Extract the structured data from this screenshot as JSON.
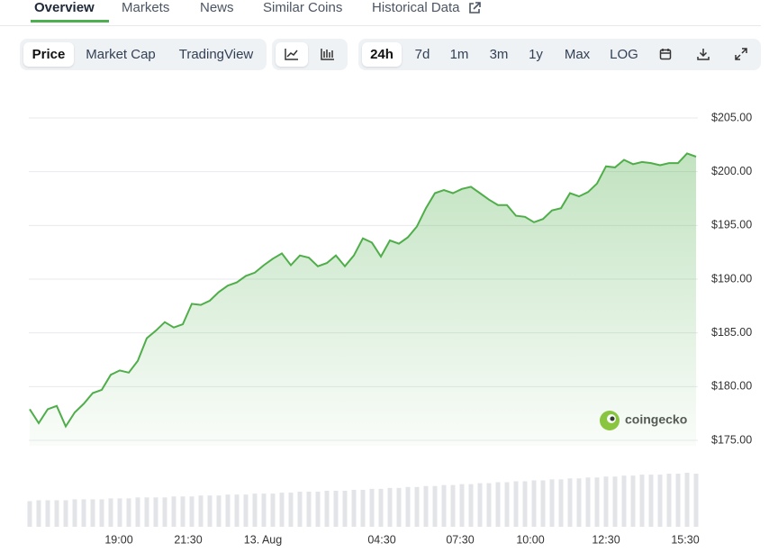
{
  "tabs": [
    "Overview",
    "Markets",
    "News",
    "Similar Coins",
    "Historical Data"
  ],
  "toolbar": {
    "chart_types": [
      "Price",
      "Market Cap",
      "TradingView"
    ],
    "ranges": [
      "24h",
      "7d",
      "1m",
      "3m",
      "1y",
      "Max",
      "LOG"
    ]
  },
  "watermark": "coingecko",
  "chart": {
    "type": "line",
    "color": "#4fae4a",
    "values": [
      177.9,
      176.6,
      177.9,
      178.2,
      176.3,
      177.6,
      178.4,
      179.4,
      179.7,
      181.1,
      181.5,
      181.3,
      182.4,
      184.5,
      185.2,
      186.0,
      185.5,
      185.8,
      187.7,
      187.6,
      188.0,
      188.8,
      189.4,
      189.7,
      190.3,
      190.6,
      191.3,
      191.9,
      192.4,
      191.3,
      192.2,
      192.0,
      191.2,
      191.5,
      192.2,
      191.2,
      192.2,
      193.8,
      193.4,
      192.1,
      193.6,
      193.3,
      193.9,
      194.9,
      196.6,
      198.0,
      198.3,
      198.0,
      198.4,
      198.6,
      198.0,
      197.4,
      196.9,
      196.9,
      195.9,
      195.8,
      195.3,
      195.6,
      196.4,
      196.6,
      198.0,
      197.7,
      198.1,
      198.9,
      200.5,
      200.4,
      201.1,
      200.7,
      200.9,
      200.8,
      200.6,
      200.8,
      200.8,
      201.7,
      201.4
    ],
    "volume": [
      27,
      28,
      28,
      28,
      28,
      29,
      29,
      29,
      29,
      30,
      30,
      30,
      31,
      31,
      31,
      31,
      32,
      32,
      32,
      33,
      33,
      33,
      34,
      34,
      34,
      35,
      35,
      35,
      36,
      36,
      37,
      37,
      37,
      38,
      38,
      38,
      39,
      39,
      40,
      40,
      41,
      41,
      42,
      42,
      43,
      43,
      44,
      44,
      45,
      45,
      46,
      46,
      47,
      47,
      48,
      48,
      49,
      49,
      50,
      50,
      51,
      51,
      52,
      52,
      53,
      53,
      54,
      54,
      55,
      55,
      55,
      56,
      56,
      57,
      56
    ],
    "ylim": [
      175,
      205
    ],
    "yticks": [
      {
        "value": 175,
        "label": "$175.00"
      },
      {
        "value": 180,
        "label": "$180.00"
      },
      {
        "value": 185,
        "label": "$185.00"
      },
      {
        "value": 190,
        "label": "$190.00"
      },
      {
        "value": 195,
        "label": "$195.00"
      },
      {
        "value": 200,
        "label": "$200.00"
      },
      {
        "value": 205,
        "label": "$205.00"
      }
    ],
    "xticks": [
      "19:00",
      "21:30",
      "13. Aug",
      "04:30",
      "07:30",
      "10:00",
      "12:30",
      "15:30"
    ],
    "grid": true
  }
}
